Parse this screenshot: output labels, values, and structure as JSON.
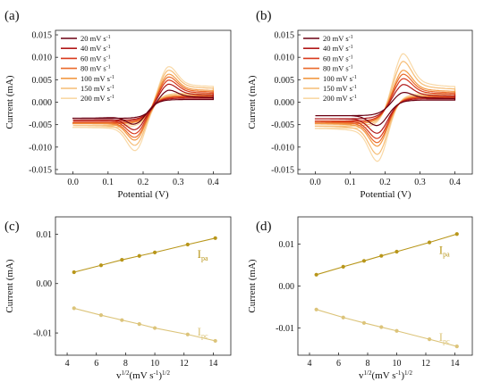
{
  "chart_data": [
    {
      "panel": "(a)",
      "type": "line",
      "xlabel": "Potential (V)",
      "ylabel": "Current (mA)",
      "xlim": [
        -0.05,
        0.45
      ],
      "ylim": [
        -0.016,
        0.016
      ],
      "xticks": [
        "0.0",
        "0.1",
        "0.2",
        "0.3",
        "0.4"
      ],
      "yticks": [
        "-0.015",
        "-0.010",
        "-0.005",
        "0.000",
        "0.005",
        "0.010",
        "0.015"
      ],
      "legend_placement": "top-left",
      "series": [
        {
          "name": "20 mV s",
          "color": "#6b0012",
          "anodic_peak": [
            0.27,
            0.0033
          ],
          "cathodic_peak": [
            0.18,
            -0.0052
          ],
          "start_current": -0.0036,
          "end_current": 0.001
        },
        {
          "name": "40 mV s",
          "color": "#b01818",
          "anodic_peak": [
            0.27,
            0.0048
          ],
          "cathodic_peak": [
            0.18,
            -0.0066
          ],
          "start_current": -0.004,
          "end_current": 0.0015
        },
        {
          "name": "60 mV s",
          "color": "#d83a1c",
          "anodic_peak": [
            0.27,
            0.0058
          ],
          "cathodic_peak": [
            0.18,
            -0.0076
          ],
          "start_current": -0.0043,
          "end_current": 0.0019
        },
        {
          "name": "80 mV s",
          "color": "#ea6a2a",
          "anodic_peak": [
            0.27,
            0.0066
          ],
          "cathodic_peak": [
            0.18,
            -0.0085
          ],
          "start_current": -0.0046,
          "end_current": 0.0022
        },
        {
          "name": "100 mV s",
          "color": "#f29a45",
          "anodic_peak": [
            0.27,
            0.0073
          ],
          "cathodic_peak": [
            0.18,
            -0.0092
          ],
          "start_current": -0.0048,
          "end_current": 0.0025
        },
        {
          "name": "150 mV s",
          "color": "#f6bd77",
          "anodic_peak": [
            0.27,
            0.0083
          ],
          "cathodic_peak": [
            0.18,
            -0.0105
          ],
          "start_current": -0.0052,
          "end_current": 0.003
        },
        {
          "name": "200 mV s",
          "color": "#f9d9a7",
          "anodic_peak": [
            0.27,
            0.0092
          ],
          "cathodic_peak": [
            0.18,
            -0.0118
          ],
          "start_current": -0.0056,
          "end_current": 0.0034
        }
      ]
    },
    {
      "panel": "(b)",
      "type": "line",
      "xlabel": "Potential (V)",
      "ylabel": "Current (mA)",
      "xlim": [
        -0.05,
        0.45
      ],
      "ylim": [
        -0.016,
        0.016
      ],
      "xticks": [
        "0.0",
        "0.1",
        "0.2",
        "0.3",
        "0.4"
      ],
      "yticks": [
        "-0.015",
        "-0.010",
        "-0.005",
        "0.000",
        "0.005",
        "0.010",
        "0.015"
      ],
      "legend_placement": "top-left",
      "series": [
        {
          "name": "20 mV s",
          "color": "#6b0012",
          "anodic_peak": [
            0.25,
            0.0027
          ],
          "cathodic_peak": [
            0.18,
            -0.0056
          ],
          "start_current": -0.003,
          "end_current": 0.0008
        },
        {
          "name": "40 mV s",
          "color": "#b01818",
          "anodic_peak": [
            0.25,
            0.0047
          ],
          "cathodic_peak": [
            0.18,
            -0.0075
          ],
          "start_current": -0.0037,
          "end_current": 0.0013
        },
        {
          "name": "60 mV s",
          "color": "#d83a1c",
          "anodic_peak": [
            0.25,
            0.0062
          ],
          "cathodic_peak": [
            0.18,
            -0.0088
          ],
          "start_current": -0.0042,
          "end_current": 0.0017
        },
        {
          "name": "80 mV s",
          "color": "#ea6a2a",
          "anodic_peak": [
            0.25,
            0.0073
          ],
          "cathodic_peak": [
            0.18,
            -0.0098
          ],
          "start_current": -0.0045,
          "end_current": 0.002
        },
        {
          "name": "100 mV s",
          "color": "#f29a45",
          "anodic_peak": [
            0.25,
            0.0083
          ],
          "cathodic_peak": [
            0.18,
            -0.0107
          ],
          "start_current": -0.0048,
          "end_current": 0.0023
        },
        {
          "name": "150 mV s",
          "color": "#f6bd77",
          "anodic_peak": [
            0.25,
            0.0105
          ],
          "cathodic_peak": [
            0.18,
            -0.0127
          ],
          "start_current": -0.0053,
          "end_current": 0.0028
        },
        {
          "name": "200 mV s",
          "color": "#f9d9a7",
          "anodic_peak": [
            0.25,
            0.0124
          ],
          "cathodic_peak": [
            0.18,
            -0.0144
          ],
          "start_current": -0.0058,
          "end_current": 0.0033
        }
      ]
    },
    {
      "panel": "(c)",
      "type": "scatter",
      "xlabel": "v",
      "xlabel_sup1": "1/2",
      "xlabel_units": "(mV s",
      "xlabel_sup2": "-1",
      "xlabel_close": ")",
      "xlabel_sup3": "1/2",
      "ylabel": "Current (mA)",
      "xlim": [
        3.2,
        15.2
      ],
      "ylim": [
        -0.0145,
        0.0135
      ],
      "xticks": [
        "4",
        "6",
        "8",
        "10",
        "12",
        "14"
      ],
      "yticks": [
        "-0.01",
        "0.00",
        "0.01"
      ],
      "x": [
        4.47,
        6.32,
        7.75,
        8.94,
        10.0,
        12.25,
        14.14
      ],
      "series": [
        {
          "name": "I",
          "sub": "pa",
          "color": "#b8961a",
          "values": [
            0.0023,
            0.0037,
            0.0048,
            0.0056,
            0.0063,
            0.0079,
            0.0092
          ]
        },
        {
          "name": "I",
          "sub": "pc",
          "color": "#dcc47a",
          "values": [
            -0.005,
            -0.0064,
            -0.0074,
            -0.0082,
            -0.009,
            -0.0103,
            -0.0116
          ]
        }
      ]
    },
    {
      "panel": "(d)",
      "type": "scatter",
      "xlabel": "v",
      "xlabel_sup1": "1/2",
      "xlabel_units": "(mV s",
      "xlabel_sup2": "-1",
      "xlabel_close": ")",
      "xlabel_sup3": "1/2",
      "ylabel": "Current (mA)",
      "xlim": [
        3.2,
        15.2
      ],
      "ylim": [
        -0.0165,
        0.0165
      ],
      "xticks": [
        "4",
        "6",
        "8",
        "10",
        "12",
        "14"
      ],
      "yticks": [
        "-0.01",
        "0.00",
        "0.01"
      ],
      "x": [
        4.47,
        6.32,
        7.75,
        8.94,
        10.0,
        12.25,
        14.14
      ],
      "series": [
        {
          "name": "I",
          "sub": "pa",
          "color": "#b8961a",
          "values": [
            0.0027,
            0.0046,
            0.006,
            0.0072,
            0.0082,
            0.0104,
            0.0124
          ]
        },
        {
          "name": "I",
          "sub": "pc",
          "color": "#dcc47a",
          "values": [
            -0.0056,
            -0.0075,
            -0.0088,
            -0.0098,
            -0.0107,
            -0.0127,
            -0.0144
          ]
        }
      ]
    }
  ]
}
